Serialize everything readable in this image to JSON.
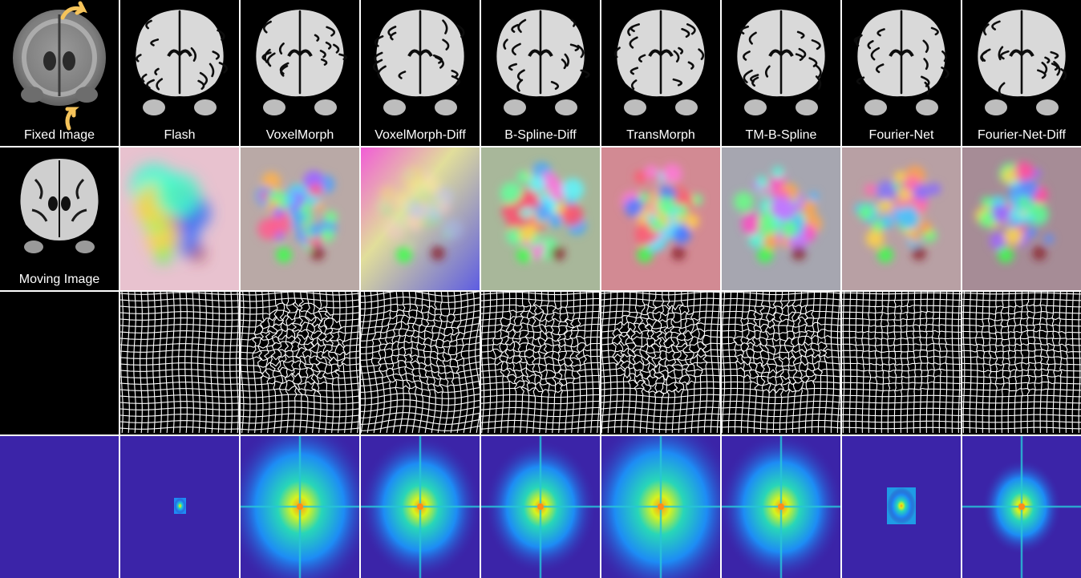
{
  "labels": {
    "fixed": "Fixed Image",
    "moving": "Moving Image",
    "methods": [
      "Flash",
      "VoxelMorph",
      "VoxelMorph-Diff",
      "B-Spline-Diff",
      "TransMorph",
      "TM-B-Spline",
      "Fourier-Net",
      "Fourier-Net-Diff"
    ]
  },
  "colors": {
    "fft_background": "#3b24a8",
    "arrow": "#f5c35a",
    "grid_line": "#ffffff",
    "brain_tissue": "#d9d9d9"
  },
  "icons": {
    "arrow": "curved-arrow-icon"
  }
}
